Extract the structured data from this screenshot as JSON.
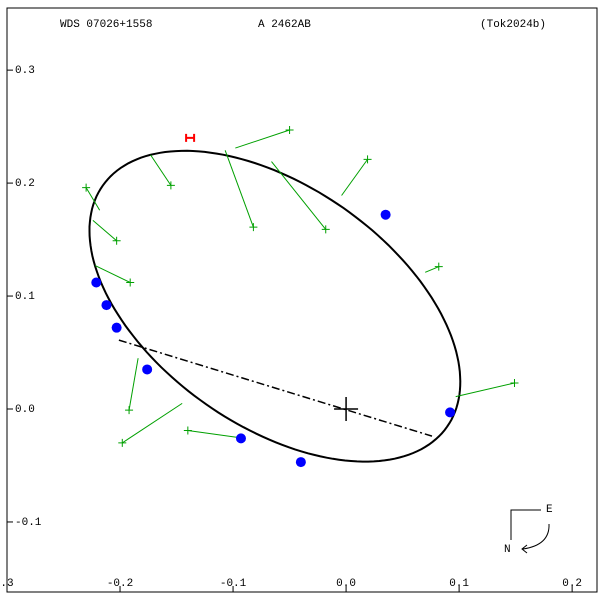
{
  "chart_data": {
    "type": "scatter",
    "header": [
      "WDS 07026+1558",
      "A  2462AB",
      "(Tok2024b)"
    ],
    "xlim": [
      -0.3,
      0.222
    ],
    "ylim": [
      -0.162,
      0.355
    ],
    "xticks": [
      {
        "value": -0.3,
        "label": ".3"
      },
      {
        "value": -0.2,
        "label": "-0.2"
      },
      {
        "value": -0.1,
        "label": "-0.1"
      },
      {
        "value": 0,
        "label": "0.0"
      },
      {
        "value": 0.1,
        "label": "0.1"
      },
      {
        "value": 0.2,
        "label": "0.2"
      }
    ],
    "yticks": [
      {
        "value": 0.3,
        "label": "0.3"
      },
      {
        "value": 0.2,
        "label": "0.2"
      },
      {
        "value": 0.1,
        "label": "0.1"
      },
      {
        "value": 0,
        "label": "0.0"
      },
      {
        "value": -0.1,
        "label": "-0.1"
      }
    ],
    "orbit": {
      "cx": -0.063,
      "cy": 0.091,
      "a": 0.186,
      "b": 0.106,
      "angle": -35,
      "color": "#000000"
    },
    "node_line": {
      "x": [
        -0.201,
        0.076
      ],
      "y": [
        0.061,
        -0.024
      ]
    },
    "speckle": {
      "color": "#0000ff",
      "x": [
        0.035,
        -0.221,
        -0.212,
        -0.203,
        -0.176,
        -0.093,
        -0.04,
        0.092
      ],
      "y": [
        0.172,
        0.112,
        0.092,
        0.072,
        0.035,
        -0.026,
        -0.047,
        -0.003
      ]
    },
    "visual": {
      "color": "#00a000",
      "x": [
        -0.05,
        0.019,
        -0.018,
        -0.082,
        -0.155,
        -0.23,
        -0.203,
        -0.191,
        0.082,
        0.149,
        -0.192,
        -0.198,
        -0.14
      ],
      "y": [
        0.247,
        0.221,
        0.159,
        0.161,
        0.198,
        0.196,
        0.149,
        0.112,
        0.126,
        0.023,
        -0.001,
        -0.03,
        -0.019
      ],
      "orbit_x": [
        -0.098,
        -0.004,
        -0.066,
        -0.107,
        -0.173,
        -0.218,
        -0.224,
        -0.222,
        0.07,
        0.097,
        -0.184,
        -0.145,
        -0.097
      ],
      "orbit_y": [
        0.231,
        0.189,
        0.219,
        0.229,
        0.225,
        0.176,
        0.167,
        0.127,
        0.121,
        0.011,
        0.045,
        0.005,
        -0.025
      ]
    },
    "marker": {
      "x": -0.138,
      "y": 0.24,
      "color": "#ff0000"
    },
    "compass": [
      "E",
      "N"
    ]
  }
}
